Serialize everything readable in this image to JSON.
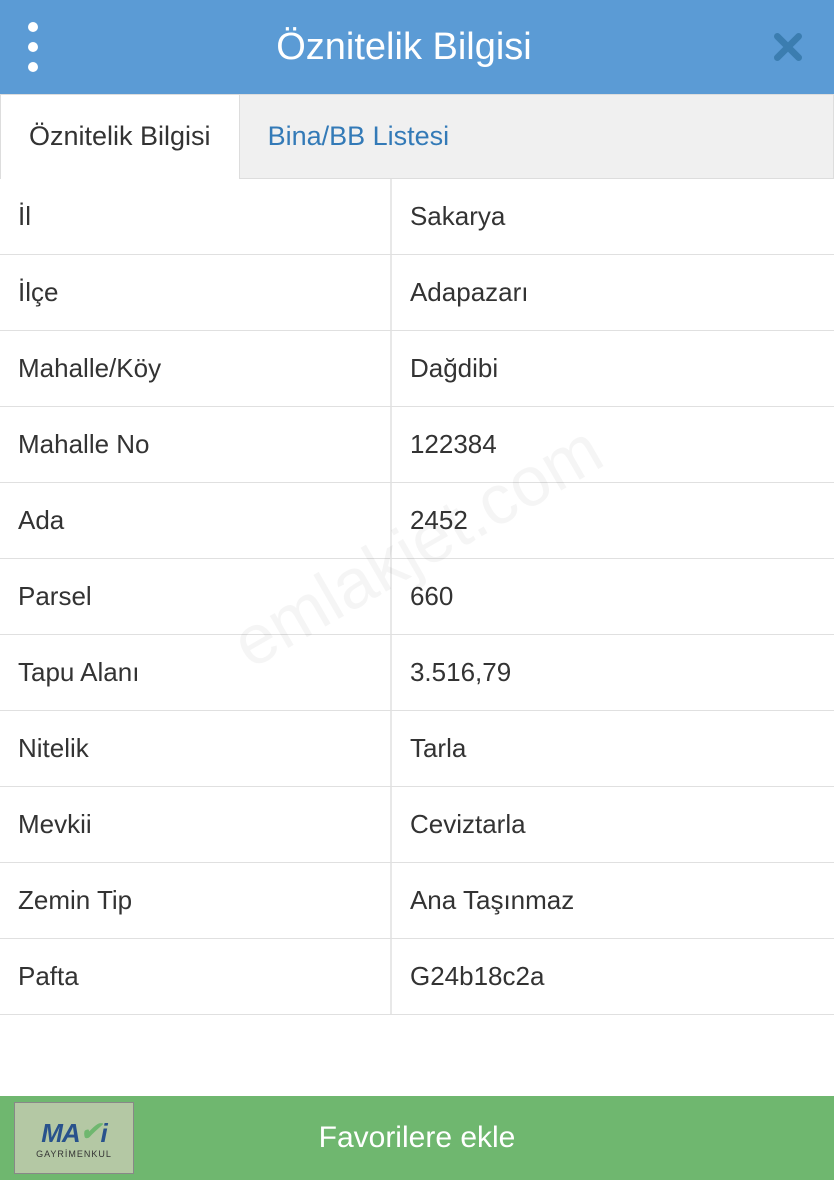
{
  "header": {
    "title": "Öznitelik Bilgisi"
  },
  "tabs": [
    {
      "label": "Öznitelik Bilgisi",
      "active": true
    },
    {
      "label": "Bina/BB Listesi",
      "active": false
    }
  ],
  "rows": [
    {
      "label": "İl",
      "value": "Sakarya"
    },
    {
      "label": "İlçe",
      "value": "Adapazarı"
    },
    {
      "label": "Mahalle/Köy",
      "value": "Dağdibi"
    },
    {
      "label": "Mahalle No",
      "value": "122384"
    },
    {
      "label": "Ada",
      "value": "2452"
    },
    {
      "label": "Parsel",
      "value": "660"
    },
    {
      "label": "Tapu Alanı",
      "value": "3.516,79"
    },
    {
      "label": "Nitelik",
      "value": "Tarla"
    },
    {
      "label": "Mevkii",
      "value": "Ceviztarla"
    },
    {
      "label": "Zemin Tip",
      "value": "Ana Taşınmaz"
    },
    {
      "label": "Pafta",
      "value": "G24b18c2a"
    }
  ],
  "footer": {
    "favorite_label": "Favorilere ekle"
  },
  "logo": {
    "top": "MA",
    "top2": "i",
    "sub": "GAYRİMENKUL"
  },
  "watermark": "emlakjet.com",
  "colors": {
    "header_bg": "#5b9bd5",
    "footer_bg": "#6fb76f",
    "link": "#337ab7"
  }
}
